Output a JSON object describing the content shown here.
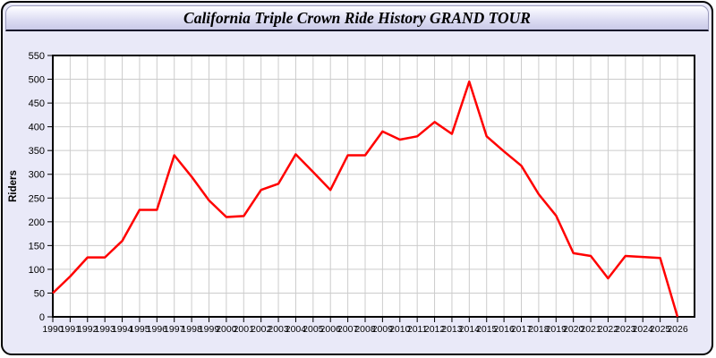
{
  "header": {
    "title": "California Triple Crown Ride History GRAND TOUR"
  },
  "colors": {
    "frame_border": "#000000",
    "page_background": "#e9e9f8",
    "titlebar_gradient_top": "#ffffff",
    "titlebar_gradient_bottom": "#c9c9e8",
    "plot_background": "#ffffff",
    "gridline": "#cccccc",
    "axis": "#000000",
    "line": "#ff0000"
  },
  "chart_data": {
    "type": "line",
    "title": "California Triple Crown Ride History GRAND TOUR",
    "xlabel": "",
    "ylabel": "Riders",
    "ylim": [
      0,
      550
    ],
    "ytick_step": 50,
    "grid": true,
    "legend_position": "none",
    "line_color": "#ff0000",
    "x": [
      1990,
      1991,
      1992,
      1993,
      1994,
      1995,
      1996,
      1997,
      1998,
      1999,
      2000,
      2001,
      2002,
      2003,
      2004,
      2005,
      2006,
      2007,
      2008,
      2009,
      2010,
      2011,
      2012,
      2013,
      2014,
      2015,
      2016,
      2017,
      2018,
      2019,
      2020,
      2021,
      2022,
      2023,
      2024,
      2025,
      2026
    ],
    "values": [
      50,
      85,
      125,
      125,
      160,
      225,
      225,
      340,
      295,
      245,
      210,
      212,
      267,
      280,
      342,
      305,
      267,
      340,
      340,
      390,
      373,
      380,
      410,
      385,
      495,
      380,
      348,
      318,
      258,
      213,
      134,
      128,
      81,
      128,
      126,
      124,
      0
    ]
  }
}
